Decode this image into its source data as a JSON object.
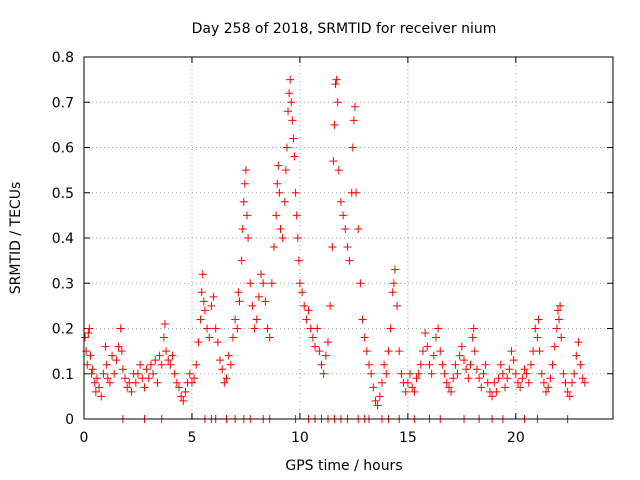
{
  "chart_data": {
    "type": "scatter",
    "title": "Day 258 of 2018, SRMTID for receiver nium",
    "xlabel": "GPS time / hours",
    "ylabel": "SRMTID / TECUs",
    "xlim": [
      0,
      24.5
    ],
    "ylim": [
      0,
      0.8
    ],
    "x_ticks": [
      0,
      5,
      10,
      15,
      20
    ],
    "x_tick_labels": [
      "0",
      "5",
      "10",
      "15",
      "20"
    ],
    "y_ticks": [
      0,
      0.1,
      0.2,
      0.3,
      0.4,
      0.5,
      0.6,
      0.7,
      0.8
    ],
    "y_tick_labels": [
      "0",
      "0.1",
      "0.2",
      "0.3",
      "0.4",
      "0.5",
      "0.6",
      "0.7",
      "0.8"
    ],
    "grid": true,
    "marker": "+",
    "colors": {
      "series": "#ff0000",
      "grid": "#a0a0a0",
      "axis": "#000000"
    },
    "series": [
      {
        "name": "SRMTID",
        "points": [
          [
            0.05,
            0.18
          ],
          [
            0.1,
            0.15
          ],
          [
            0.15,
            0.12
          ],
          [
            0.2,
            0.19
          ],
          [
            0.25,
            0.2
          ],
          [
            0.3,
            0.14
          ],
          [
            0.35,
            0.1
          ],
          [
            0.4,
            0.11
          ],
          [
            0.5,
            0.08
          ],
          [
            0.55,
            0.06
          ],
          [
            0.6,
            0.09
          ],
          [
            0.7,
            0.07
          ],
          [
            0.8,
            0.05
          ],
          [
            0.9,
            0.1
          ],
          [
            1.0,
            0.16
          ],
          [
            1.05,
            0.12
          ],
          [
            1.1,
            0.09
          ],
          [
            1.2,
            0.08
          ],
          [
            1.3,
            0.14
          ],
          [
            1.4,
            0.1
          ],
          [
            1.5,
            0.13
          ],
          [
            1.6,
            0.16
          ],
          [
            1.7,
            0.2
          ],
          [
            1.75,
            0.15
          ],
          [
            1.8,
            0.11
          ],
          [
            1.9,
            0.09
          ],
          [
            2.0,
            0.07
          ],
          [
            2.1,
            0.08
          ],
          [
            2.2,
            0.06
          ],
          [
            2.3,
            0.1
          ],
          [
            2.4,
            0.08
          ],
          [
            2.5,
            0.1
          ],
          [
            2.6,
            0.12
          ],
          [
            2.7,
            0.09
          ],
          [
            2.8,
            0.07
          ],
          [
            2.9,
            0.11
          ],
          [
            3.0,
            0.09
          ],
          [
            3.1,
            0.12
          ],
          [
            3.2,
            0.1
          ],
          [
            3.3,
            0.13
          ],
          [
            3.4,
            0.08
          ],
          [
            3.5,
            0.14
          ],
          [
            3.6,
            0.12
          ],
          [
            3.7,
            0.18
          ],
          [
            3.75,
            0.21
          ],
          [
            3.8,
            0.15
          ],
          [
            3.9,
            0.13
          ],
          [
            4.0,
            0.12
          ],
          [
            4.1,
            0.14
          ],
          [
            4.2,
            0.1
          ],
          [
            4.3,
            0.08
          ],
          [
            4.4,
            0.07
          ],
          [
            4.5,
            0.05
          ],
          [
            4.6,
            0.04
          ],
          [
            4.7,
            0.06
          ],
          [
            4.8,
            0.08
          ],
          [
            4.9,
            0.1
          ],
          [
            5.0,
            0.08
          ],
          [
            5.1,
            0.09
          ],
          [
            5.2,
            0.12
          ],
          [
            5.3,
            0.17
          ],
          [
            5.4,
            0.22
          ],
          [
            5.45,
            0.28
          ],
          [
            5.5,
            0.32
          ],
          [
            5.55,
            0.26
          ],
          [
            5.6,
            0.24
          ],
          [
            5.7,
            0.2
          ],
          [
            5.8,
            0.18
          ],
          [
            5.9,
            0.25
          ],
          [
            6.0,
            0.27
          ],
          [
            6.1,
            0.2
          ],
          [
            6.2,
            0.17
          ],
          [
            6.3,
            0.13
          ],
          [
            6.4,
            0.11
          ],
          [
            6.5,
            0.08
          ],
          [
            6.6,
            0.09
          ],
          [
            6.7,
            0.14
          ],
          [
            6.8,
            0.12
          ],
          [
            6.9,
            0.18
          ],
          [
            7.0,
            0.22
          ],
          [
            7.1,
            0.2
          ],
          [
            7.15,
            0.28
          ],
          [
            7.2,
            0.26
          ],
          [
            7.3,
            0.35
          ],
          [
            7.35,
            0.42
          ],
          [
            7.4,
            0.48
          ],
          [
            7.45,
            0.52
          ],
          [
            7.5,
            0.55
          ],
          [
            7.55,
            0.45
          ],
          [
            7.6,
            0.4
          ],
          [
            7.7,
            0.3
          ],
          [
            7.8,
            0.25
          ],
          [
            7.9,
            0.2
          ],
          [
            8.0,
            0.22
          ],
          [
            8.1,
            0.27
          ],
          [
            8.2,
            0.32
          ],
          [
            8.3,
            0.3
          ],
          [
            8.4,
            0.26
          ],
          [
            8.5,
            0.2
          ],
          [
            8.6,
            0.18
          ],
          [
            8.7,
            0.3
          ],
          [
            8.8,
            0.38
          ],
          [
            8.9,
            0.45
          ],
          [
            8.95,
            0.52
          ],
          [
            9.0,
            0.56
          ],
          [
            9.05,
            0.5
          ],
          [
            9.1,
            0.42
          ],
          [
            9.2,
            0.4
          ],
          [
            9.3,
            0.48
          ],
          [
            9.35,
            0.55
          ],
          [
            9.4,
            0.6
          ],
          [
            9.45,
            0.68
          ],
          [
            9.5,
            0.72
          ],
          [
            9.55,
            0.75
          ],
          [
            9.6,
            0.7
          ],
          [
            9.65,
            0.66
          ],
          [
            9.7,
            0.62
          ],
          [
            9.75,
            0.58
          ],
          [
            9.8,
            0.5
          ],
          [
            9.85,
            0.45
          ],
          [
            9.9,
            0.4
          ],
          [
            9.95,
            0.35
          ],
          [
            10.0,
            0.3
          ],
          [
            10.1,
            0.28
          ],
          [
            10.2,
            0.25
          ],
          [
            10.3,
            0.22
          ],
          [
            10.4,
            0.24
          ],
          [
            10.5,
            0.2
          ],
          [
            10.6,
            0.18
          ],
          [
            10.7,
            0.16
          ],
          [
            10.8,
            0.2
          ],
          [
            10.9,
            0.15
          ],
          [
            11.0,
            0.12
          ],
          [
            11.1,
            0.1
          ],
          [
            11.2,
            0.14
          ],
          [
            11.3,
            0.17
          ],
          [
            11.4,
            0.25
          ],
          [
            11.5,
            0.38
          ],
          [
            11.55,
            0.57
          ],
          [
            11.6,
            0.65
          ],
          [
            11.65,
            0.74
          ],
          [
            11.7,
            0.75
          ],
          [
            11.75,
            0.7
          ],
          [
            11.8,
            0.55
          ],
          [
            11.9,
            0.48
          ],
          [
            12.0,
            0.45
          ],
          [
            12.1,
            0.42
          ],
          [
            12.2,
            0.38
          ],
          [
            12.3,
            0.35
          ],
          [
            12.4,
            0.5
          ],
          [
            12.45,
            0.6
          ],
          [
            12.5,
            0.66
          ],
          [
            12.55,
            0.69
          ],
          [
            12.6,
            0.5
          ],
          [
            12.7,
            0.42
          ],
          [
            12.8,
            0.3
          ],
          [
            12.9,
            0.22
          ],
          [
            13.0,
            0.18
          ],
          [
            13.1,
            0.15
          ],
          [
            13.2,
            0.12
          ],
          [
            13.3,
            0.1
          ],
          [
            13.4,
            0.07
          ],
          [
            13.5,
            0.04
          ],
          [
            13.6,
            0.03
          ],
          [
            13.7,
            0.05
          ],
          [
            13.8,
            0.08
          ],
          [
            13.9,
            0.12
          ],
          [
            14.0,
            0.1
          ],
          [
            14.1,
            0.15
          ],
          [
            14.2,
            0.2
          ],
          [
            14.3,
            0.28
          ],
          [
            14.35,
            0.3
          ],
          [
            14.4,
            0.33
          ],
          [
            14.5,
            0.25
          ],
          [
            14.6,
            0.15
          ],
          [
            14.7,
            0.1
          ],
          [
            14.8,
            0.08
          ],
          [
            14.9,
            0.06
          ],
          [
            15.0,
            0.08
          ],
          [
            15.1,
            0.1
          ],
          [
            15.2,
            0.07
          ],
          [
            15.3,
            0.06
          ],
          [
            15.4,
            0.09
          ],
          [
            15.5,
            0.1
          ],
          [
            15.6,
            0.12
          ],
          [
            15.7,
            0.15
          ],
          [
            15.8,
            0.19
          ],
          [
            15.9,
            0.16
          ],
          [
            16.0,
            0.12
          ],
          [
            16.1,
            0.1
          ],
          [
            16.2,
            0.14
          ],
          [
            16.3,
            0.18
          ],
          [
            16.4,
            0.2
          ],
          [
            16.5,
            0.15
          ],
          [
            16.6,
            0.12
          ],
          [
            16.7,
            0.1
          ],
          [
            16.8,
            0.08
          ],
          [
            16.9,
            0.07
          ],
          [
            17.0,
            0.06
          ],
          [
            17.1,
            0.09
          ],
          [
            17.2,
            0.12
          ],
          [
            17.3,
            0.1
          ],
          [
            17.4,
            0.14
          ],
          [
            17.5,
            0.16
          ],
          [
            17.6,
            0.13
          ],
          [
            17.7,
            0.11
          ],
          [
            17.8,
            0.09
          ],
          [
            17.9,
            0.12
          ],
          [
            18.0,
            0.18
          ],
          [
            18.05,
            0.2
          ],
          [
            18.1,
            0.15
          ],
          [
            18.2,
            0.11
          ],
          [
            18.3,
            0.09
          ],
          [
            18.4,
            0.07
          ],
          [
            18.5,
            0.1
          ],
          [
            18.6,
            0.12
          ],
          [
            18.7,
            0.08
          ],
          [
            18.8,
            0.06
          ],
          [
            18.9,
            0.05
          ],
          [
            19.0,
            0.08
          ],
          [
            19.1,
            0.06
          ],
          [
            19.2,
            0.09
          ],
          [
            19.3,
            0.12
          ],
          [
            19.4,
            0.1
          ],
          [
            19.5,
            0.07
          ],
          [
            19.6,
            0.09
          ],
          [
            19.7,
            0.11
          ],
          [
            19.8,
            0.15
          ],
          [
            19.9,
            0.13
          ],
          [
            20.0,
            0.1
          ],
          [
            20.1,
            0.08
          ],
          [
            20.2,
            0.07
          ],
          [
            20.3,
            0.09
          ],
          [
            20.4,
            0.11
          ],
          [
            20.5,
            0.1
          ],
          [
            20.6,
            0.08
          ],
          [
            20.7,
            0.12
          ],
          [
            20.8,
            0.15
          ],
          [
            20.9,
            0.2
          ],
          [
            21.0,
            0.18
          ],
          [
            21.05,
            0.22
          ],
          [
            21.1,
            0.15
          ],
          [
            21.2,
            0.1
          ],
          [
            21.3,
            0.08
          ],
          [
            21.4,
            0.06
          ],
          [
            21.5,
            0.07
          ],
          [
            21.6,
            0.09
          ],
          [
            21.7,
            0.12
          ],
          [
            21.8,
            0.16
          ],
          [
            21.9,
            0.2
          ],
          [
            21.95,
            0.24
          ],
          [
            22.0,
            0.22
          ],
          [
            22.05,
            0.25
          ],
          [
            22.1,
            0.18
          ],
          [
            22.2,
            0.1
          ],
          [
            22.3,
            0.08
          ],
          [
            22.4,
            0.06
          ],
          [
            22.5,
            0.05
          ],
          [
            22.6,
            0.08
          ],
          [
            22.7,
            0.1
          ],
          [
            22.8,
            0.14
          ],
          [
            22.9,
            0.17
          ],
          [
            23.0,
            0.12
          ],
          [
            23.1,
            0.09
          ],
          [
            23.2,
            0.08
          ],
          [
            1.8,
            0
          ],
          [
            2.8,
            0
          ],
          [
            3.6,
            0
          ],
          [
            5.6,
            0
          ],
          [
            5.9,
            0
          ],
          [
            6.1,
            0
          ],
          [
            6.6,
            0
          ],
          [
            7.0,
            0
          ],
          [
            7.4,
            0
          ],
          [
            7.7,
            0
          ],
          [
            8.3,
            0
          ],
          [
            8.6,
            0
          ],
          [
            9.8,
            0
          ],
          [
            10.4,
            0
          ],
          [
            10.7,
            0
          ],
          [
            11.0,
            0
          ],
          [
            11.3,
            0
          ],
          [
            11.6,
            0
          ],
          [
            11.9,
            0
          ],
          [
            12.2,
            0
          ],
          [
            12.7,
            0
          ],
          [
            13.0,
            0
          ],
          [
            13.2,
            0
          ],
          [
            13.8,
            0
          ],
          [
            14.1,
            0
          ],
          [
            14.6,
            0
          ],
          [
            15.3,
            0
          ],
          [
            16.0,
            0
          ],
          [
            16.5,
            0
          ],
          [
            17.6,
            0
          ],
          [
            18.3,
            0
          ],
          [
            18.9,
            0
          ],
          [
            19.4,
            0
          ],
          [
            20.4,
            0
          ],
          [
            21.0,
            0
          ],
          [
            22.4,
            0
          ]
        ]
      }
    ]
  }
}
